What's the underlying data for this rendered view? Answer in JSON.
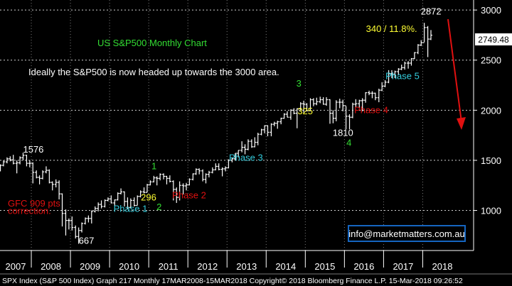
{
  "chart_data": {
    "type": "bar",
    "subtype": "ohlc-monthly",
    "title": "US S&P500 Monthly Chart",
    "subtitle": "Ideally the S&P500 is now headed up towards the 3000 area.",
    "xlabel": "",
    "ylabel": "",
    "x_ticks": [
      "2007",
      "2008",
      "2009",
      "2010",
      "2011",
      "2012",
      "2013",
      "2014",
      "2015",
      "2016",
      "2017",
      "2018"
    ],
    "y_ticks": [
      1000,
      1500,
      2000,
      2500,
      3000
    ],
    "ylim": [
      600,
      3100
    ],
    "xlim": [
      2007.2,
      2019.3
    ],
    "grid": true,
    "last_price": "2749.48",
    "series": [
      {
        "values": [
          [
            2007.21,
            1420,
            1460,
            1390,
            1450
          ],
          [
            2007.29,
            1450,
            1500,
            1440,
            1485
          ],
          [
            2007.38,
            1485,
            1530,
            1470,
            1515
          ],
          [
            2007.46,
            1515,
            1540,
            1490,
            1505
          ],
          [
            2007.54,
            1505,
            1555,
            1460,
            1470
          ],
          [
            2007.63,
            1470,
            1500,
            1370,
            1475
          ],
          [
            2007.71,
            1475,
            1540,
            1460,
            1525
          ],
          [
            2007.79,
            1525,
            1576,
            1500,
            1550
          ],
          [
            2007.88,
            1550,
            1555,
            1440,
            1470
          ],
          [
            2007.96,
            1470,
            1500,
            1430,
            1470
          ],
          [
            2008.04,
            1470,
            1480,
            1270,
            1380
          ],
          [
            2008.13,
            1380,
            1400,
            1320,
            1330
          ],
          [
            2008.21,
            1330,
            1350,
            1260,
            1320
          ],
          [
            2008.29,
            1320,
            1400,
            1310,
            1385
          ],
          [
            2008.38,
            1385,
            1440,
            1370,
            1400
          ],
          [
            2008.46,
            1400,
            1410,
            1270,
            1280
          ],
          [
            2008.54,
            1280,
            1290,
            1200,
            1260
          ],
          [
            2008.63,
            1260,
            1310,
            1230,
            1280
          ],
          [
            2008.71,
            1280,
            1300,
            1110,
            1165
          ],
          [
            2008.79,
            1165,
            1170,
            840,
            970
          ],
          [
            2008.88,
            970,
            1010,
            750,
            900
          ],
          [
            2008.96,
            900,
            920,
            810,
            900
          ],
          [
            2009.04,
            900,
            940,
            800,
            830
          ],
          [
            2009.13,
            830,
            850,
            720,
            740
          ],
          [
            2009.21,
            740,
            830,
            667,
            800
          ],
          [
            2009.29,
            800,
            880,
            780,
            870
          ],
          [
            2009.38,
            870,
            930,
            860,
            920
          ],
          [
            2009.46,
            920,
            950,
            880,
            920
          ],
          [
            2009.54,
            920,
            1000,
            870,
            990
          ],
          [
            2009.63,
            990,
            1040,
            980,
            1020
          ],
          [
            2009.71,
            1020,
            1080,
            990,
            1060
          ],
          [
            2009.79,
            1060,
            1100,
            1020,
            1040
          ],
          [
            2009.88,
            1040,
            1110,
            1030,
            1100
          ],
          [
            2009.96,
            1100,
            1130,
            1090,
            1115
          ],
          [
            2010.04,
            1115,
            1150,
            1070,
            1075
          ],
          [
            2010.13,
            1075,
            1110,
            1045,
            1105
          ],
          [
            2010.21,
            1105,
            1180,
            1100,
            1170
          ],
          [
            2010.29,
            1170,
            1220,
            1160,
            1185
          ],
          [
            2010.38,
            1185,
            1190,
            1040,
            1090
          ],
          [
            2010.46,
            1090,
            1130,
            1010,
            1030
          ],
          [
            2010.54,
            1030,
            1120,
            1020,
            1100
          ],
          [
            2010.63,
            1100,
            1130,
            1040,
            1050
          ],
          [
            2010.71,
            1050,
            1150,
            1050,
            1140
          ],
          [
            2010.79,
            1140,
            1200,
            1130,
            1185
          ],
          [
            2010.88,
            1185,
            1230,
            1170,
            1180
          ],
          [
            2010.96,
            1180,
            1265,
            1180,
            1255
          ],
          [
            2011.04,
            1255,
            1300,
            1250,
            1285
          ],
          [
            2011.13,
            1285,
            1345,
            1280,
            1325
          ],
          [
            2011.21,
            1325,
            1340,
            1250,
            1320
          ],
          [
            2011.29,
            1320,
            1370,
            1300,
            1360
          ],
          [
            2011.38,
            1360,
            1370,
            1310,
            1340
          ],
          [
            2011.46,
            1340,
            1345,
            1260,
            1320
          ],
          [
            2011.54,
            1320,
            1350,
            1280,
            1290
          ],
          [
            2011.63,
            1290,
            1300,
            1100,
            1210
          ],
          [
            2011.71,
            1210,
            1230,
            1075,
            1130
          ],
          [
            2011.79,
            1130,
            1290,
            1100,
            1250
          ],
          [
            2011.88,
            1250,
            1270,
            1160,
            1245
          ],
          [
            2011.96,
            1245,
            1275,
            1200,
            1255
          ],
          [
            2012.04,
            1255,
            1320,
            1250,
            1310
          ],
          [
            2012.13,
            1310,
            1370,
            1300,
            1365
          ],
          [
            2012.21,
            1365,
            1420,
            1355,
            1410
          ],
          [
            2012.29,
            1410,
            1420,
            1360,
            1395
          ],
          [
            2012.38,
            1395,
            1410,
            1290,
            1310
          ],
          [
            2012.46,
            1310,
            1370,
            1270,
            1360
          ],
          [
            2012.54,
            1360,
            1395,
            1330,
            1380
          ],
          [
            2012.63,
            1380,
            1430,
            1370,
            1405
          ],
          [
            2012.71,
            1405,
            1470,
            1400,
            1440
          ],
          [
            2012.79,
            1440,
            1470,
            1400,
            1410
          ],
          [
            2012.88,
            1410,
            1430,
            1340,
            1415
          ],
          [
            2012.96,
            1415,
            1440,
            1390,
            1425
          ],
          [
            2013.04,
            1425,
            1510,
            1420,
            1500
          ],
          [
            2013.13,
            1500,
            1530,
            1480,
            1515
          ],
          [
            2013.21,
            1515,
            1570,
            1500,
            1570
          ],
          [
            2013.29,
            1570,
            1600,
            1530,
            1600
          ],
          [
            2013.38,
            1600,
            1690,
            1580,
            1630
          ],
          [
            2013.46,
            1630,
            1660,
            1560,
            1610
          ],
          [
            2013.54,
            1610,
            1710,
            1600,
            1690
          ],
          [
            2013.63,
            1690,
            1710,
            1625,
            1635
          ],
          [
            2013.71,
            1635,
            1730,
            1630,
            1680
          ],
          [
            2013.79,
            1680,
            1775,
            1650,
            1760
          ],
          [
            2013.88,
            1760,
            1815,
            1750,
            1805
          ],
          [
            2013.96,
            1805,
            1850,
            1770,
            1845
          ],
          [
            2014.04,
            1845,
            1850,
            1740,
            1780
          ],
          [
            2014.13,
            1780,
            1870,
            1740,
            1860
          ],
          [
            2014.21,
            1860,
            1885,
            1840,
            1870
          ],
          [
            2014.29,
            1870,
            1895,
            1815,
            1885
          ],
          [
            2014.38,
            1885,
            1925,
            1860,
            1920
          ],
          [
            2014.46,
            1920,
            1970,
            1915,
            1960
          ],
          [
            2014.54,
            1960,
            1990,
            1930,
            1930
          ],
          [
            2014.63,
            1930,
            2010,
            1905,
            2000
          ],
          [
            2014.71,
            2000,
            2020,
            1960,
            1970
          ],
          [
            2014.79,
            1970,
            2020,
            1820,
            2015
          ],
          [
            2014.88,
            2015,
            2080,
            2000,
            2065
          ],
          [
            2014.96,
            2065,
            2095,
            1975,
            2060
          ],
          [
            2015.04,
            2060,
            2070,
            1990,
            1995
          ],
          [
            2015.13,
            1995,
            2120,
            1990,
            2105
          ],
          [
            2015.21,
            2105,
            2120,
            2040,
            2065
          ],
          [
            2015.29,
            2065,
            2125,
            2050,
            2085
          ],
          [
            2015.38,
            2085,
            2135,
            2070,
            2105
          ],
          [
            2015.46,
            2105,
            2130,
            2055,
            2060
          ],
          [
            2015.54,
            2060,
            2130,
            2045,
            2105
          ],
          [
            2015.63,
            2105,
            2110,
            1865,
            1970
          ],
          [
            2015.71,
            1970,
            2000,
            1870,
            1920
          ],
          [
            2015.79,
            1920,
            2100,
            1890,
            2080
          ],
          [
            2015.88,
            2080,
            2115,
            2020,
            2080
          ],
          [
            2015.96,
            2080,
            2105,
            1990,
            2045
          ],
          [
            2016.04,
            2045,
            2040,
            1810,
            1940
          ],
          [
            2016.13,
            1940,
            1960,
            1810,
            1930
          ],
          [
            2016.21,
            1930,
            2075,
            1920,
            2060
          ],
          [
            2016.29,
            2060,
            2110,
            2030,
            2065
          ],
          [
            2016.38,
            2065,
            2105,
            2025,
            2095
          ],
          [
            2016.46,
            2095,
            2120,
            1990,
            2100
          ],
          [
            2016.54,
            2100,
            2180,
            2075,
            2175
          ],
          [
            2016.63,
            2175,
            2195,
            2150,
            2170
          ],
          [
            2016.71,
            2170,
            2190,
            2120,
            2170
          ],
          [
            2016.79,
            2170,
            2175,
            2100,
            2125
          ],
          [
            2016.88,
            2125,
            2215,
            2080,
            2200
          ],
          [
            2016.96,
            2200,
            2280,
            2190,
            2240
          ],
          [
            2017.04,
            2240,
            2300,
            2230,
            2280
          ],
          [
            2017.13,
            2280,
            2400,
            2270,
            2365
          ],
          [
            2017.21,
            2365,
            2400,
            2320,
            2360
          ],
          [
            2017.29,
            2360,
            2395,
            2320,
            2385
          ],
          [
            2017.38,
            2385,
            2420,
            2350,
            2410
          ],
          [
            2017.46,
            2410,
            2455,
            2400,
            2425
          ],
          [
            2017.54,
            2425,
            2485,
            2405,
            2470
          ],
          [
            2017.63,
            2470,
            2490,
            2415,
            2470
          ],
          [
            2017.71,
            2470,
            2520,
            2445,
            2515
          ],
          [
            2017.79,
            2515,
            2580,
            2510,
            2575
          ],
          [
            2017.88,
            2575,
            2660,
            2560,
            2650
          ],
          [
            2017.96,
            2650,
            2700,
            2640,
            2675
          ],
          [
            2018.04,
            2675,
            2872,
            2680,
            2825
          ],
          [
            2018.13,
            2825,
            2840,
            2530,
            2710
          ],
          [
            2018.21,
            2710,
            2800,
            2700,
            2749
          ]
        ]
      }
    ],
    "annotations": [
      {
        "text": "1576",
        "x": 2007.79,
        "y": 1576,
        "color": "#ffffff"
      },
      {
        "text": "GFC 909 pts",
        "x": 2007.4,
        "y": 1040,
        "color": "#e01010"
      },
      {
        "text": "correction.",
        "x": 2007.4,
        "y": 965,
        "color": "#e01010"
      },
      {
        "text": "667",
        "x": 2009.21,
        "y": 667,
        "color": "#ffffff"
      },
      {
        "text": "Phase 1",
        "x": 2010.1,
        "y": 985,
        "color": "#33ccdd"
      },
      {
        "text": "296",
        "x": 2010.8,
        "y": 1100,
        "color": "#ffff33"
      },
      {
        "text": "1",
        "x": 2011.07,
        "y": 1410,
        "color": "#33dd33"
      },
      {
        "text": "2",
        "x": 2011.2,
        "y": 1005,
        "color": "#33dd33"
      },
      {
        "text": "Phase 2",
        "x": 2011.6,
        "y": 1120,
        "color": "#e01010"
      },
      {
        "text": "Phase 3",
        "x": 2013.05,
        "y": 1495,
        "color": "#33ccdd"
      },
      {
        "text": "3",
        "x": 2014.77,
        "y": 2235,
        "color": "#33dd33"
      },
      {
        "text": "325",
        "x": 2014.8,
        "y": 1960,
        "color": "#ffff33"
      },
      {
        "text": "1810",
        "x": 2015.7,
        "y": 1745,
        "color": "#ffffff"
      },
      {
        "text": "Phase 4",
        "x": 2016.25,
        "y": 1970,
        "color": "#e01010"
      },
      {
        "text": "4",
        "x": 2016.05,
        "y": 1645,
        "color": "#33dd33"
      },
      {
        "text": "Phase 5",
        "x": 2017.05,
        "y": 2310,
        "color": "#33ccdd"
      },
      {
        "text": "340 / 11.8%.",
        "x": 2016.55,
        "y": 2780,
        "color": "#ffff33"
      },
      {
        "text": "2872",
        "x": 2017.95,
        "y": 2955,
        "color": "#ffffff"
      }
    ],
    "watermark": "info@marketmatters.com.au",
    "footer": "SPX Index (S&P 500 Index) Graph 217  Monthly 17MAR2008-15MAR2018  Copyright© 2018 Bloomberg Finance L.P.   15-Mar-2018 09:26:52",
    "colors": {
      "background": "#000000",
      "bars": "#ffffff",
      "grid": "#cfcfcf",
      "title": "#33dd33",
      "subtitle": "#ffffff",
      "watermark_text": "#ffffff",
      "watermark_border": "#1565c0",
      "arrow": "#e01010",
      "axis_text": "#ffffff"
    }
  }
}
